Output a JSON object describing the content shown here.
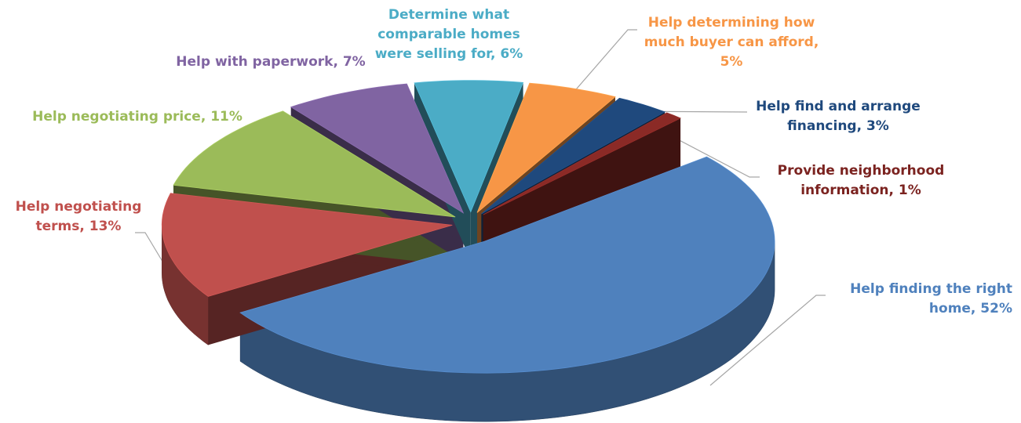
{
  "chart_data": {
    "type": "pie",
    "value_labels": [
      "Help finding the right home, 52%",
      "Help negotiating terms, 13%",
      "Help negotiating price, 11%",
      "Help with paperwork, 7%",
      "Determine what comparable homes were selling for, 6%",
      "Help determining how much buyer can afford, 5%",
      "Help find and arrange financing, 3%",
      "Provide neighborhood information, 1%"
    ],
    "values": [
      52,
      13,
      11,
      7,
      6,
      5,
      3,
      1
    ],
    "colors": [
      "#4f81bd",
      "#c0504d",
      "#9bbb59",
      "#8064a2",
      "#4bacc6",
      "#f79646",
      "#1f497d",
      "#8b2a26"
    ],
    "label_colors": [
      "#4f81bd",
      "#c0504d",
      "#9bbb59",
      "#8064a2",
      "#4bacc6",
      "#f79646",
      "#1f497d",
      "#7b2320"
    ]
  }
}
